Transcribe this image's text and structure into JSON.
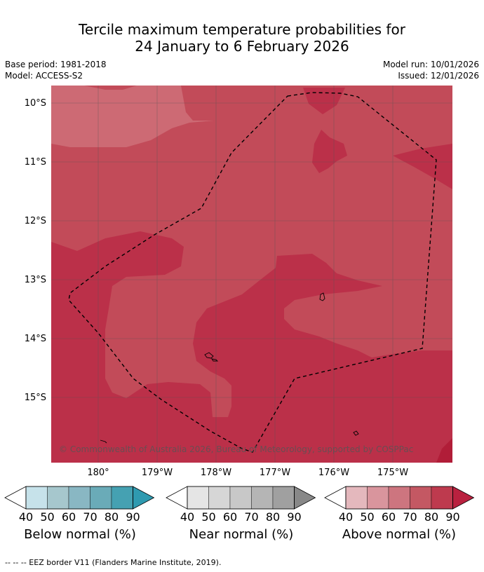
{
  "title": {
    "line1": "Tercile maximum temperature probabilities for",
    "line2": "24 January to 6 February 2026"
  },
  "meta": {
    "base_period": "Base period: 1981-2018",
    "model": "Model: ACCESS-S2",
    "model_run": "Model run: 10/01/2026",
    "issued": "Issued: 12/01/2026"
  },
  "map": {
    "lat_labels": [
      "10°S",
      "11°S",
      "12°S",
      "13°S",
      "14°S",
      "15°S"
    ],
    "lon_labels": [
      "180°",
      "179°W",
      "178°W",
      "177°W",
      "176°W",
      "175°W"
    ],
    "copyright": "© Commonwealth of Australia 2026, Bureau of Meteorology, supported by COSPPac",
    "colors": {
      "above_60": "#cd6a74",
      "above_70": "#c24b59",
      "above_80": "#bb3049",
      "coast": "#000000",
      "grid": "#666666"
    }
  },
  "legends": [
    {
      "title": "Below normal (%)",
      "ticks": [
        "40",
        "50",
        "60",
        "70",
        "80",
        "90"
      ],
      "colors": [
        "#ffffff",
        "#c6e2ea",
        "#a6c7cd",
        "#89b7c3",
        "#6aabb8",
        "#45a1b2",
        "#2f9ab0"
      ]
    },
    {
      "title": "Near normal (%)",
      "ticks": [
        "40",
        "50",
        "60",
        "70",
        "80",
        "90"
      ],
      "colors": [
        "#ffffff",
        "#e5e5e5",
        "#d6d6d6",
        "#c8c8c8",
        "#b5b5b5",
        "#a0a0a0",
        "#888888"
      ]
    },
    {
      "title": "Above normal (%)",
      "ticks": [
        "40",
        "50",
        "60",
        "70",
        "80",
        "90"
      ],
      "colors": [
        "#ffffff",
        "#e4b8bd",
        "#d9959d",
        "#cd757f",
        "#c45863",
        "#be3a4e",
        "#b9213f"
      ]
    }
  ],
  "source": "--  --  -- EEZ border V11 (Flanders Marine Institute, 2019)."
}
